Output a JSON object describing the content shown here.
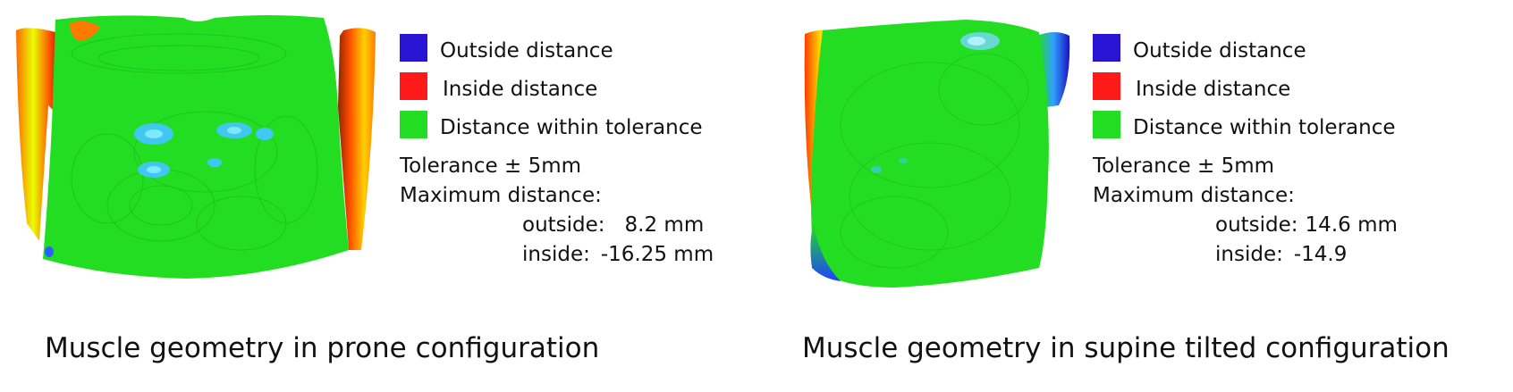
{
  "colors": {
    "outside": "#2a14d4",
    "inside": "#ff1a1a",
    "tolerance": "#22dd22"
  },
  "panels": [
    {
      "legend": {
        "outside_label": "Outside distance",
        "inside_label": "Inside distance",
        "tolerance_label": "Distance within tolerance"
      },
      "tolerance": "Tolerance ± 5mm",
      "max_distance_heading": "Maximum distance:",
      "outside_label": "outside:",
      "outside_value": "8.2 mm",
      "inside_label": "inside:",
      "inside_value": "-16.25 mm",
      "caption": "Muscle geometry in prone configuration"
    },
    {
      "legend": {
        "outside_label": "Outside distance",
        "inside_label": "Inside distance",
        "tolerance_label": "Distance within tolerance"
      },
      "tolerance": "Tolerance ± 5mm",
      "max_distance_heading": "Maximum distance:",
      "outside_label": "outside:",
      "outside_value": "14.6 mm",
      "inside_label": "inside:",
      "inside_value": "-14.9",
      "caption": "Muscle geometry in supine tilted configuration"
    }
  ]
}
